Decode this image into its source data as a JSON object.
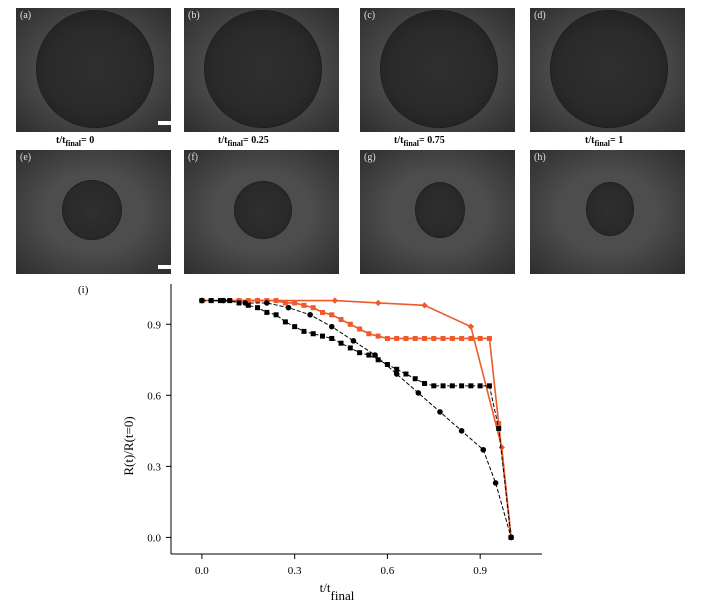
{
  "panels_top": [
    {
      "label": "(a)"
    },
    {
      "label": "(b)"
    },
    {
      "label": "(c)"
    },
    {
      "label": "(d)"
    }
  ],
  "panels_bottom": [
    {
      "label": "(e)"
    },
    {
      "label": "(f)"
    },
    {
      "label": "(g)"
    },
    {
      "label": "(h)"
    }
  ],
  "time_labels": [
    {
      "prefix": "t/t",
      "sub": "final",
      "suffix": "= 0"
    },
    {
      "prefix": "t/t",
      "sub": "final",
      "suffix": "= 0.25"
    },
    {
      "prefix": "t/t",
      "sub": "final",
      "suffix": "= 0.75"
    },
    {
      "prefix": "t/t",
      "sub": "final",
      "suffix": "= 1"
    }
  ],
  "chart_label": "(i)",
  "chart_data": {
    "type": "line",
    "title": "",
    "xlabel": "t/t",
    "xlabel_sub": "final",
    "ylabel": "R(t)/R(t=0)",
    "xlim": [
      -0.1,
      1.1
    ],
    "ylim": [
      -0.07,
      1.07
    ],
    "xticks": [
      0.0,
      0.3,
      0.6,
      0.9
    ],
    "yticks": [
      0.0,
      0.3,
      0.6,
      0.9
    ],
    "grid": false,
    "legend": "none",
    "series": [
      {
        "color": "#ee5a2c",
        "marker": "diamond",
        "linestyle": "solid",
        "x": [
          0.0,
          0.18,
          0.43,
          0.57,
          0.72,
          0.87,
          0.97,
          1.0
        ],
        "y": [
          1.0,
          1.0,
          1.0,
          0.99,
          0.98,
          0.89,
          0.38,
          0.0
        ]
      },
      {
        "color": "#ee5a2c",
        "marker": "square",
        "linestyle": "solid",
        "x": [
          0.0,
          0.03,
          0.06,
          0.09,
          0.12,
          0.15,
          0.18,
          0.21,
          0.24,
          0.27,
          0.3,
          0.33,
          0.36,
          0.39,
          0.42,
          0.45,
          0.48,
          0.51,
          0.54,
          0.57,
          0.6,
          0.63,
          0.66,
          0.69,
          0.72,
          0.75,
          0.78,
          0.81,
          0.84,
          0.87,
          0.9,
          0.93,
          0.96,
          1.0
        ],
        "y": [
          1.0,
          1.0,
          1.0,
          1.0,
          1.0,
          1.0,
          1.0,
          1.0,
          1.0,
          0.99,
          0.99,
          0.98,
          0.97,
          0.95,
          0.94,
          0.92,
          0.9,
          0.88,
          0.86,
          0.85,
          0.84,
          0.84,
          0.84,
          0.84,
          0.84,
          0.84,
          0.84,
          0.84,
          0.84,
          0.84,
          0.84,
          0.84,
          0.48,
          0.0
        ]
      },
      {
        "color": "#000000",
        "marker": "circle",
        "linestyle": "dashed",
        "x": [
          0.0,
          0.07,
          0.14,
          0.21,
          0.28,
          0.35,
          0.42,
          0.49,
          0.56,
          0.63,
          0.7,
          0.77,
          0.84,
          0.91,
          0.95,
          1.0
        ],
        "y": [
          1.0,
          1.0,
          0.99,
          0.99,
          0.97,
          0.94,
          0.89,
          0.83,
          0.77,
          0.69,
          0.61,
          0.53,
          0.45,
          0.37,
          0.23,
          0.0
        ]
      },
      {
        "color": "#000000",
        "marker": "square",
        "linestyle": "dashed",
        "x": [
          0.0,
          0.03,
          0.06,
          0.09,
          0.12,
          0.15,
          0.18,
          0.21,
          0.24,
          0.27,
          0.3,
          0.33,
          0.36,
          0.39,
          0.42,
          0.45,
          0.48,
          0.51,
          0.54,
          0.57,
          0.6,
          0.63,
          0.66,
          0.69,
          0.72,
          0.75,
          0.78,
          0.81,
          0.84,
          0.87,
          0.9,
          0.93,
          0.96,
          1.0
        ],
        "y": [
          1.0,
          1.0,
          1.0,
          1.0,
          0.99,
          0.98,
          0.97,
          0.95,
          0.94,
          0.91,
          0.89,
          0.87,
          0.86,
          0.85,
          0.84,
          0.82,
          0.8,
          0.78,
          0.77,
          0.75,
          0.73,
          0.71,
          0.69,
          0.67,
          0.65,
          0.64,
          0.64,
          0.64,
          0.64,
          0.64,
          0.64,
          0.64,
          0.46,
          0.0
        ]
      }
    ]
  }
}
